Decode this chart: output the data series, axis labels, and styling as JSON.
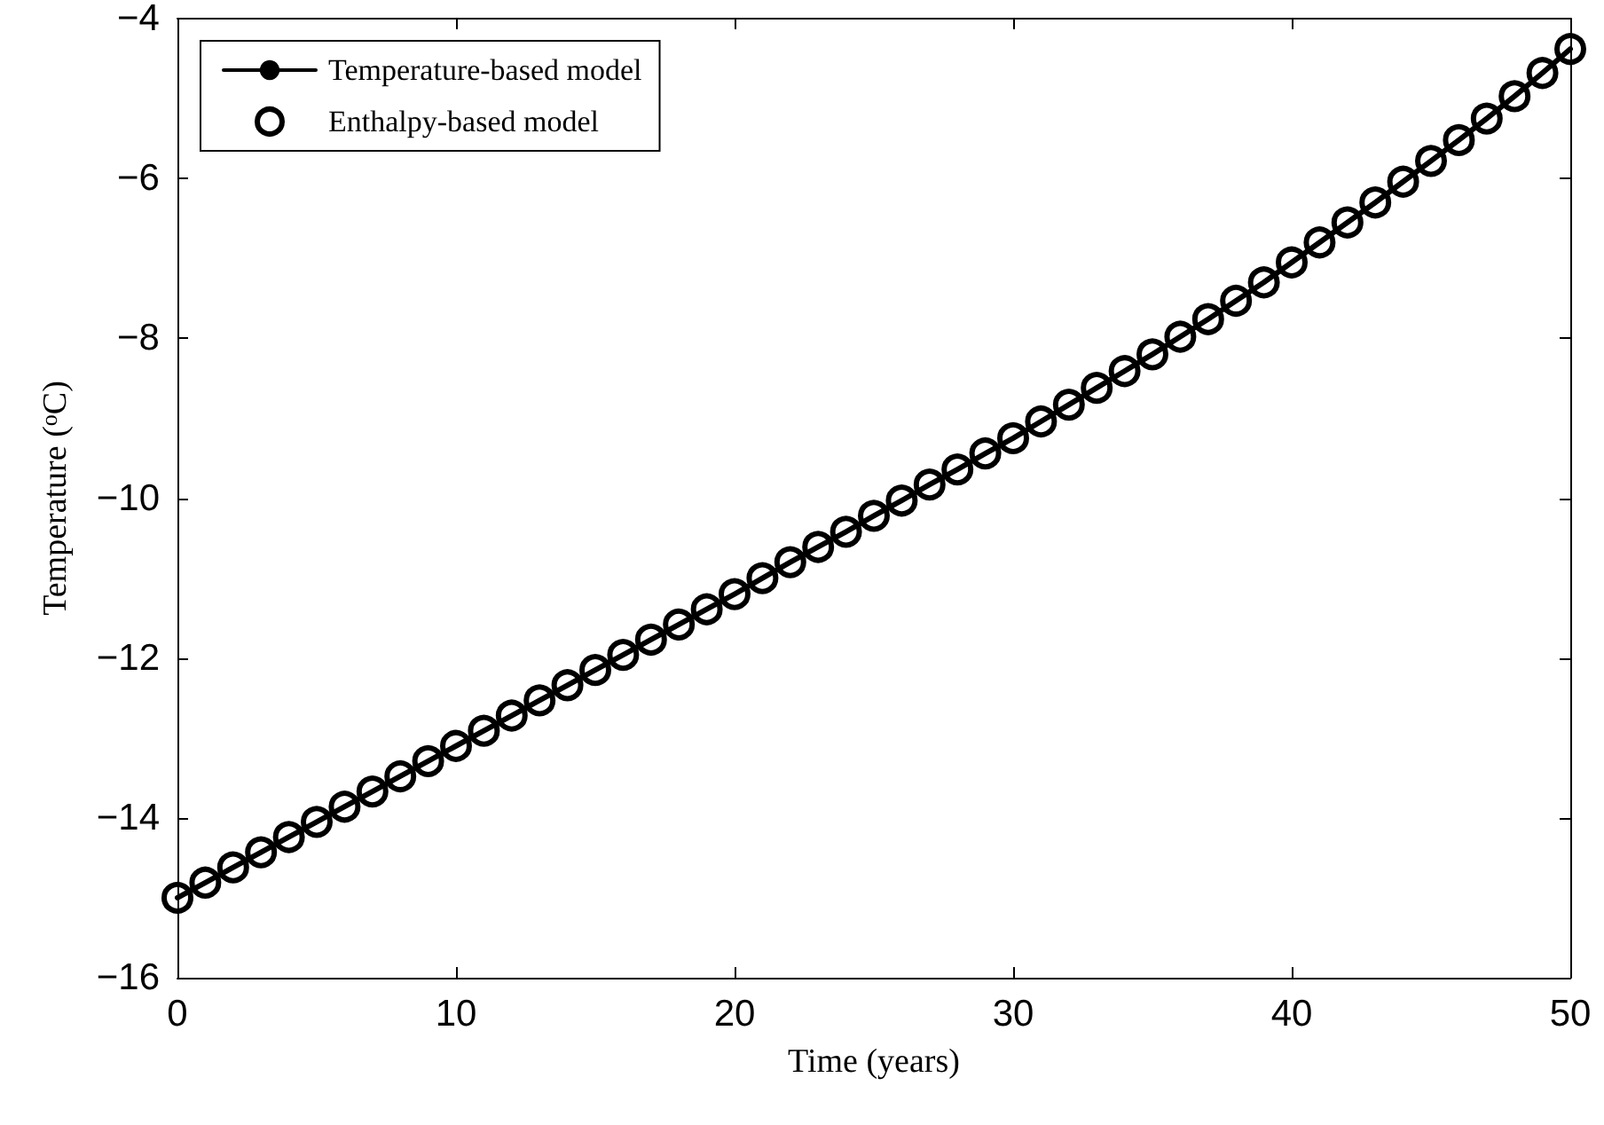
{
  "chart_data": {
    "type": "line",
    "xlabel": "Time (years)",
    "ylabel": "Temperature ($^{o}$C)",
    "xlim": [
      0,
      50
    ],
    "xticks": [
      0,
      10,
      20,
      30,
      40,
      50
    ],
    "ylim": [
      -16,
      -4
    ],
    "yticks": [
      -16,
      -14,
      -12,
      -10,
      -8,
      -6,
      -4
    ],
    "grid": false,
    "legend": "top left",
    "x": [
      0,
      1,
      2,
      3,
      4,
      5,
      6,
      7,
      8,
      9,
      10,
      11,
      12,
      13,
      14,
      15,
      16,
      17,
      18,
      19,
      20,
      21,
      22,
      23,
      24,
      25,
      26,
      27,
      28,
      29,
      30,
      31,
      32,
      33,
      34,
      35,
      36,
      37,
      38,
      39,
      40,
      41,
      42,
      43,
      44,
      45,
      46,
      47,
      48,
      49,
      50
    ],
    "series": [
      {
        "name": "Temperature-based model",
        "color": "#000000",
        "marker": "none",
        "line_style": "solid",
        "values": [
          -15,
          -14.81,
          -14.62,
          -14.43,
          -14.24,
          -14.05,
          -13.86,
          -13.67,
          -13.48,
          -13.29,
          -13.1,
          -12.91,
          -12.72,
          -12.53,
          -12.34,
          -12.15,
          -11.96,
          -11.77,
          -11.58,
          -11.39,
          -11.2,
          -11.0,
          -10.8,
          -10.61,
          -10.42,
          -10.22,
          -10.03,
          -9.83,
          -9.64,
          -9.44,
          -9.25,
          -9.04,
          -8.83,
          -8.62,
          -8.41,
          -8.2,
          -7.98,
          -7.76,
          -7.53,
          -7.3,
          -7.05,
          -6.8,
          -6.55,
          -6.3,
          -6.04,
          -5.78,
          -5.52,
          -5.25,
          -4.97,
          -4.68,
          -4.38
        ]
      },
      {
        "name": "Enthalpy-based model",
        "type": "scatter",
        "color": "#000000",
        "marker": "circle",
        "values": [
          -15,
          -14.81,
          -14.62,
          -14.43,
          -14.24,
          -14.05,
          -13.86,
          -13.67,
          -13.48,
          -13.29,
          -13.1,
          -12.91,
          -12.72,
          -12.53,
          -12.34,
          -12.15,
          -11.96,
          -11.77,
          -11.58,
          -11.39,
          -11.2,
          -11.0,
          -10.8,
          -10.61,
          -10.42,
          -10.22,
          -10.03,
          -9.83,
          -9.64,
          -9.44,
          -9.25,
          -9.04,
          -8.83,
          -8.62,
          -8.41,
          -8.2,
          -7.98,
          -7.76,
          -7.53,
          -7.3,
          -7.05,
          -6.8,
          -6.55,
          -6.3,
          -6.04,
          -5.78,
          -5.52,
          -5.25,
          -4.97,
          -4.68,
          -4.38
        ]
      }
    ]
  }
}
